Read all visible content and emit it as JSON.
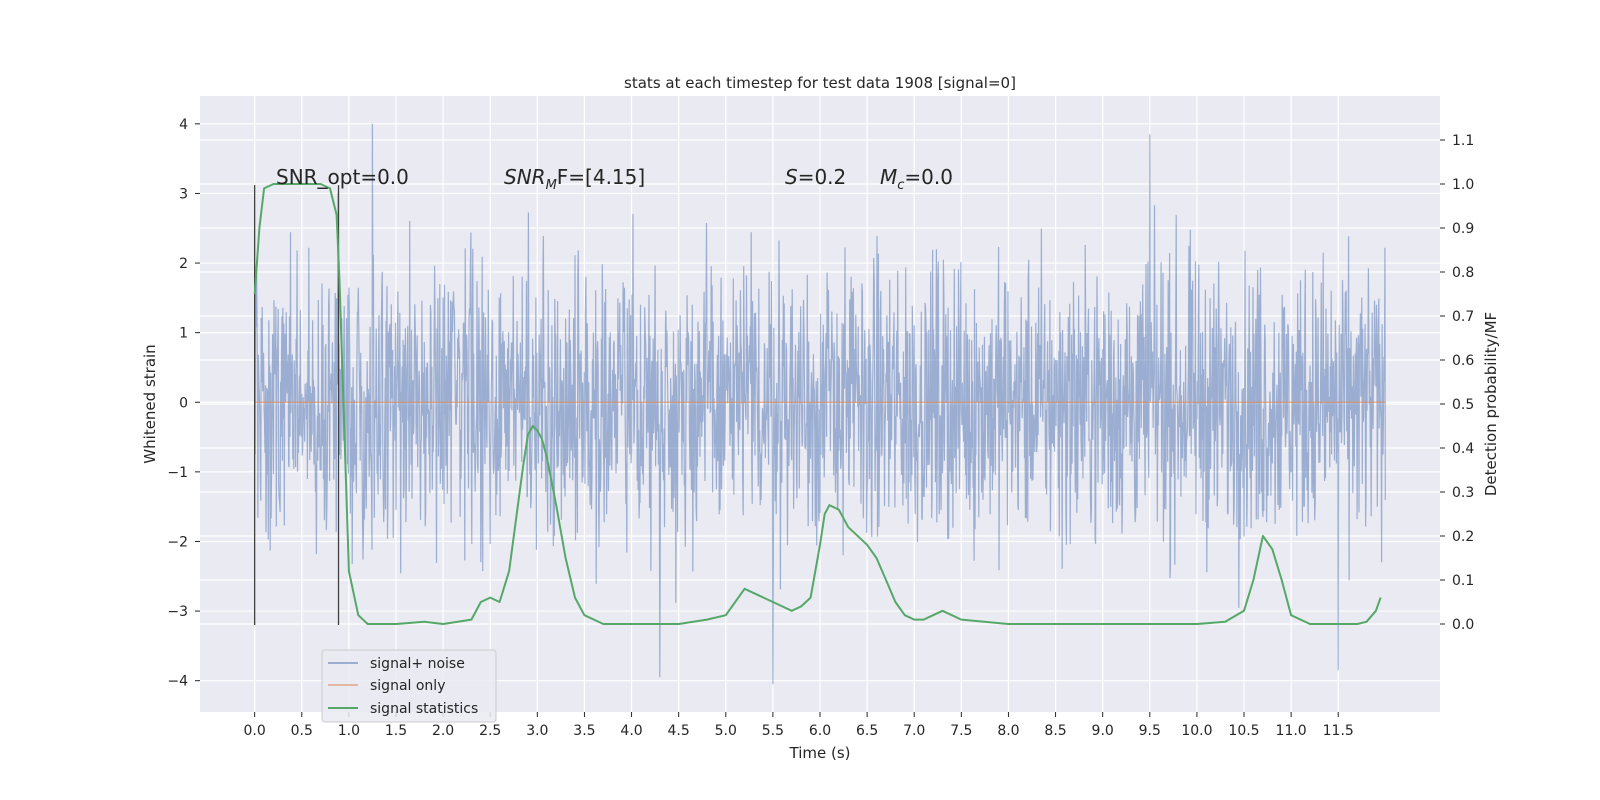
{
  "chart_data": {
    "type": "line",
    "title": "stats at each timestep for test data 1908 [signal=0]",
    "xlabel": "Time (s)",
    "ylabel": "Whitened strain",
    "ylabel_right": "Detection probability/MF",
    "xlim": [
      -0.58,
      12.58
    ],
    "ylim": [
      -4.45,
      4.4
    ],
    "ylim_right": [
      -0.2,
      1.2
    ],
    "x_ticks": [
      "0.0",
      "0.5",
      "1.0",
      "1.5",
      "2.0",
      "2.5",
      "3.0",
      "3.5",
      "4.0",
      "4.5",
      "5.0",
      "5.5",
      "6.0",
      "6.5",
      "7.0",
      "7.5",
      "8.0",
      "8.5",
      "9.0",
      "9.5",
      "10.0",
      "10.5",
      "11.0",
      "11.5"
    ],
    "y_ticks": [
      "−4",
      "−3",
      "−2",
      "−1",
      "0",
      "1",
      "2",
      "3",
      "4"
    ],
    "y_ticks_right": [
      "0.0",
      "0.1",
      "0.2",
      "0.3",
      "0.4",
      "0.5",
      "0.6",
      "0.7",
      "0.8",
      "0.9",
      "1.0",
      "1.1"
    ],
    "grid": true,
    "legend_position": "lower-left",
    "annotations": {
      "snr_opt": "SNR_opt=0.0",
      "snr_mf_main": "SNR",
      "snr_mf_sub": "M",
      "snr_mf_rest": "F=[4.15]",
      "s_var": "S",
      "s_value": "=0.2",
      "mc_var": "M",
      "mc_sub": "c",
      "mc_value": "=0.0"
    },
    "vertical_markers": [
      {
        "x": 0.0,
        "ymin": -3.2,
        "ymax": 3.12
      },
      {
        "x": 0.89,
        "ymin": -3.2,
        "ymax": 3.12
      }
    ],
    "series": [
      {
        "name": "signal+ noise",
        "color": "#4c72b0",
        "description_values": "noise",
        "x_range": [
          0.0,
          12.0
        ],
        "typical_envelope": [
          -1.9,
          1.9
        ],
        "extreme_peaks": [
          {
            "x": 1.25,
            "y": 4.0
          },
          {
            "x": 9.5,
            "y": 3.85
          },
          {
            "x": 5.5,
            "y": -4.05
          },
          {
            "x": 4.3,
            "y": -3.95
          },
          {
            "x": 11.5,
            "y": -3.85
          }
        ]
      },
      {
        "name": "signal only",
        "color": "#dd8452",
        "x": [
          0.0,
          12.0
        ],
        "values": [
          0.0,
          0.0
        ]
      },
      {
        "name": "signal statistics",
        "color": "#55a868",
        "axis": "right",
        "x": [
          0.0,
          0.05,
          0.1,
          0.2,
          0.3,
          0.5,
          0.7,
          0.8,
          0.87,
          0.9,
          0.95,
          1.0,
          1.1,
          1.2,
          1.5,
          1.8,
          2.0,
          2.3,
          2.4,
          2.5,
          2.6,
          2.7,
          2.8,
          2.85,
          2.9,
          2.95,
          3.0,
          3.05,
          3.1,
          3.2,
          3.3,
          3.4,
          3.5,
          3.7,
          4.0,
          4.5,
          4.8,
          5.0,
          5.1,
          5.2,
          5.3,
          5.4,
          5.6,
          5.7,
          5.8,
          5.9,
          6.0,
          6.05,
          6.1,
          6.2,
          6.3,
          6.5,
          6.6,
          6.7,
          6.8,
          6.9,
          7.0,
          7.1,
          7.2,
          7.3,
          7.4,
          7.5,
          8.0,
          9.0,
          10.0,
          10.3,
          10.5,
          10.6,
          10.7,
          10.8,
          10.9,
          11.0,
          11.2,
          11.5,
          11.7,
          11.8,
          11.9,
          11.95
        ],
        "values": [
          0.75,
          0.9,
          0.99,
          1.0,
          1.0,
          1.0,
          1.0,
          0.99,
          0.93,
          0.78,
          0.45,
          0.12,
          0.02,
          0.0,
          0.0,
          0.005,
          0.0,
          0.01,
          0.05,
          0.06,
          0.05,
          0.12,
          0.28,
          0.36,
          0.43,
          0.45,
          0.44,
          0.42,
          0.38,
          0.27,
          0.15,
          0.06,
          0.02,
          0.0,
          0.0,
          0.0,
          0.01,
          0.02,
          0.05,
          0.08,
          0.07,
          0.06,
          0.04,
          0.03,
          0.04,
          0.06,
          0.18,
          0.25,
          0.27,
          0.26,
          0.22,
          0.18,
          0.15,
          0.1,
          0.05,
          0.02,
          0.01,
          0.01,
          0.02,
          0.03,
          0.02,
          0.01,
          0.0,
          0.0,
          0.0,
          0.005,
          0.03,
          0.1,
          0.2,
          0.17,
          0.1,
          0.02,
          0.0,
          0.0,
          0.0,
          0.005,
          0.03,
          0.06
        ]
      }
    ]
  }
}
